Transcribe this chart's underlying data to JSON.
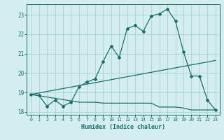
{
  "xlabel": "Humidex (Indice chaleur)",
  "bg_color": "#d4eef0",
  "grid_color": "#aed4d6",
  "line_color": "#1a6e6a",
  "x_values": [
    0,
    1,
    2,
    3,
    4,
    5,
    6,
    7,
    8,
    9,
    10,
    11,
    12,
    13,
    14,
    15,
    16,
    17,
    18,
    19,
    20,
    21,
    22,
    23
  ],
  "curve1": [
    18.9,
    18.85,
    18.3,
    18.6,
    18.3,
    18.5,
    19.3,
    19.55,
    19.7,
    20.6,
    21.4,
    20.8,
    22.3,
    22.45,
    22.15,
    22.95,
    23.05,
    23.3,
    22.7,
    21.1,
    19.85,
    19.85,
    18.6,
    18.1
  ],
  "line2_x": [
    0,
    23
  ],
  "line2_y": [
    18.9,
    20.65
  ],
  "line3_x": [
    0,
    6,
    7,
    8,
    9,
    10,
    11,
    12,
    13,
    14,
    15,
    16,
    17,
    18,
    19,
    20,
    21,
    22,
    23
  ],
  "line3_y": [
    18.9,
    18.5,
    18.5,
    18.5,
    18.45,
    18.45,
    18.45,
    18.45,
    18.45,
    18.45,
    18.45,
    18.25,
    18.25,
    18.25,
    18.2,
    18.1,
    18.1,
    18.1,
    18.1
  ],
  "ylim": [
    17.85,
    23.55
  ],
  "xlim": [
    -0.5,
    23.5
  ],
  "yticks": [
    18,
    19,
    20,
    21,
    22,
    23
  ],
  "xticks": [
    0,
    1,
    2,
    3,
    4,
    5,
    6,
    7,
    8,
    9,
    10,
    11,
    12,
    13,
    14,
    15,
    16,
    17,
    18,
    19,
    20,
    21,
    22,
    23
  ]
}
